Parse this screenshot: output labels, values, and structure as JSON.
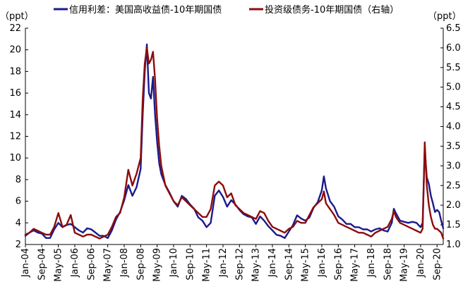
{
  "chart_data": {
    "type": "line",
    "legend": {
      "placement": "top",
      "entries": [
        "信用利差：美国高收益债-10年期国债",
        "投资级债务-10年期国债（右轴）"
      ]
    },
    "y_left": {
      "unit_label": "（ppt）",
      "ylim": [
        2,
        22
      ],
      "ticks": [
        "2",
        "4",
        "6",
        "8",
        "10",
        "12",
        "14",
        "16",
        "18",
        "20",
        "22"
      ]
    },
    "y_right": {
      "unit_label": "（ppt）",
      "ylim": [
        1.0,
        6.5
      ],
      "ticks": [
        "1.0",
        "1.5",
        "2.0",
        "2.5",
        "3.0",
        "3.5",
        "4.0",
        "4.5",
        "5.0",
        "5.5",
        "6.0",
        "6.5"
      ]
    },
    "x_tick_labels": [
      "Jan-04",
      "Sep-04",
      "May-05",
      "Jan-06",
      "Sep-06",
      "May-07",
      "Jan-08",
      "Sep-08",
      "May-09",
      "Jan-10",
      "Sep-10",
      "May-11",
      "Jan-12",
      "Sep-12",
      "May-13",
      "Jan-14",
      "Sep-14",
      "May-15",
      "Jan-16",
      "Sep-16",
      "May-17",
      "Jan-18",
      "Sep-18",
      "May-19",
      "Jan-20",
      "Sep-20"
    ],
    "x_range": [
      "2004-01",
      "2020-12"
    ],
    "grid": false,
    "series": [
      {
        "name": "信用利差：美国高收益债-10年期国债",
        "axis": "left",
        "color": "#1a1a8c",
        "points": [
          [
            "2004-01",
            2.8
          ],
          [
            "2004-03",
            3.1
          ],
          [
            "2004-05",
            3.3
          ],
          [
            "2004-07",
            3.1
          ],
          [
            "2004-09",
            3.0
          ],
          [
            "2004-11",
            2.6
          ],
          [
            "2005-01",
            2.6
          ],
          [
            "2005-03",
            3.4
          ],
          [
            "2005-05",
            4.0
          ],
          [
            "2005-07",
            3.6
          ],
          [
            "2005-09",
            3.8
          ],
          [
            "2005-11",
            3.9
          ],
          [
            "2006-01",
            3.6
          ],
          [
            "2006-03",
            3.3
          ],
          [
            "2006-05",
            3.1
          ],
          [
            "2006-07",
            3.5
          ],
          [
            "2006-09",
            3.4
          ],
          [
            "2006-11",
            3.1
          ],
          [
            "2007-01",
            2.8
          ],
          [
            "2007-03",
            2.8
          ],
          [
            "2007-05",
            2.6
          ],
          [
            "2007-07",
            3.3
          ],
          [
            "2007-09",
            4.3
          ],
          [
            "2007-11",
            5.0
          ],
          [
            "2008-01",
            6.1
          ],
          [
            "2008-03",
            7.5
          ],
          [
            "2008-05",
            6.5
          ],
          [
            "2008-07",
            7.3
          ],
          [
            "2008-09",
            9.0
          ],
          [
            "2008-10",
            14.0
          ],
          [
            "2008-11",
            18.0
          ],
          [
            "2008-12",
            20.5
          ],
          [
            "2009-01",
            16.0
          ],
          [
            "2009-02",
            15.5
          ],
          [
            "2009-03",
            17.5
          ],
          [
            "2009-04",
            14.0
          ],
          [
            "2009-05",
            11.5
          ],
          [
            "2009-06",
            9.5
          ],
          [
            "2009-07",
            8.5
          ],
          [
            "2009-09",
            7.5
          ],
          [
            "2009-11",
            6.8
          ],
          [
            "2010-01",
            6.0
          ],
          [
            "2010-03",
            5.5
          ],
          [
            "2010-05",
            6.5
          ],
          [
            "2010-07",
            6.2
          ],
          [
            "2010-09",
            5.7
          ],
          [
            "2010-11",
            5.3
          ],
          [
            "2011-01",
            4.5
          ],
          [
            "2011-03",
            4.2
          ],
          [
            "2011-05",
            3.6
          ],
          [
            "2011-07",
            4.0
          ],
          [
            "2011-09",
            6.5
          ],
          [
            "2011-11",
            7.0
          ],
          [
            "2012-01",
            6.4
          ],
          [
            "2012-03",
            5.5
          ],
          [
            "2012-05",
            6.1
          ],
          [
            "2012-07",
            5.7
          ],
          [
            "2012-09",
            5.2
          ],
          [
            "2012-11",
            4.8
          ],
          [
            "2013-01",
            4.6
          ],
          [
            "2013-03",
            4.5
          ],
          [
            "2013-05",
            3.9
          ],
          [
            "2013-07",
            4.6
          ],
          [
            "2013-09",
            4.2
          ],
          [
            "2013-11",
            3.7
          ],
          [
            "2014-01",
            3.3
          ],
          [
            "2014-03",
            2.9
          ],
          [
            "2014-05",
            2.8
          ],
          [
            "2014-07",
            2.6
          ],
          [
            "2014-09",
            3.2
          ],
          [
            "2014-11",
            3.8
          ],
          [
            "2015-01",
            4.7
          ],
          [
            "2015-03",
            4.4
          ],
          [
            "2015-05",
            4.2
          ],
          [
            "2015-07",
            4.5
          ],
          [
            "2015-09",
            5.4
          ],
          [
            "2015-11",
            5.9
          ],
          [
            "2016-01",
            7.0
          ],
          [
            "2016-02",
            8.3
          ],
          [
            "2016-03",
            7.2
          ],
          [
            "2016-05",
            6.0
          ],
          [
            "2016-07",
            5.5
          ],
          [
            "2016-09",
            4.6
          ],
          [
            "2016-11",
            4.3
          ],
          [
            "2017-01",
            3.9
          ],
          [
            "2017-03",
            3.9
          ],
          [
            "2017-05",
            3.6
          ],
          [
            "2017-07",
            3.6
          ],
          [
            "2017-09",
            3.4
          ],
          [
            "2017-11",
            3.4
          ],
          [
            "2018-01",
            3.2
          ],
          [
            "2018-03",
            3.4
          ],
          [
            "2018-05",
            3.5
          ],
          [
            "2018-07",
            3.3
          ],
          [
            "2018-09",
            3.2
          ],
          [
            "2018-11",
            4.0
          ],
          [
            "2018-12",
            5.3
          ],
          [
            "2019-01",
            4.9
          ],
          [
            "2019-03",
            4.2
          ],
          [
            "2019-05",
            4.1
          ],
          [
            "2019-07",
            4.0
          ],
          [
            "2019-09",
            4.1
          ],
          [
            "2019-11",
            4.0
          ],
          [
            "2020-01",
            3.6
          ],
          [
            "2020-02",
            4.0
          ],
          [
            "2020-03",
            10.8
          ],
          [
            "2020-04",
            8.2
          ],
          [
            "2020-05",
            7.6
          ],
          [
            "2020-06",
            6.5
          ],
          [
            "2020-07",
            5.8
          ],
          [
            "2020-08",
            5.0
          ],
          [
            "2020-09",
            5.2
          ],
          [
            "2020-10",
            5.0
          ],
          [
            "2020-11",
            4.2
          ],
          [
            "2020-12",
            3.5
          ]
        ]
      },
      {
        "name": "投资级债务-10年期国债（右轴）",
        "axis": "right",
        "color": "#8b0d0d",
        "points": [
          [
            "2004-01",
            1.25
          ],
          [
            "2004-03",
            1.3
          ],
          [
            "2004-05",
            1.4
          ],
          [
            "2004-07",
            1.35
          ],
          [
            "2004-09",
            1.3
          ],
          [
            "2004-11",
            1.25
          ],
          [
            "2005-01",
            1.25
          ],
          [
            "2005-03",
            1.45
          ],
          [
            "2005-05",
            1.8
          ],
          [
            "2005-07",
            1.45
          ],
          [
            "2005-09",
            1.5
          ],
          [
            "2005-11",
            1.75
          ],
          [
            "2006-01",
            1.3
          ],
          [
            "2006-03",
            1.25
          ],
          [
            "2006-05",
            1.2
          ],
          [
            "2006-07",
            1.25
          ],
          [
            "2006-09",
            1.25
          ],
          [
            "2006-11",
            1.2
          ],
          [
            "2007-01",
            1.15
          ],
          [
            "2007-03",
            1.2
          ],
          [
            "2007-05",
            1.25
          ],
          [
            "2007-07",
            1.45
          ],
          [
            "2007-09",
            1.7
          ],
          [
            "2007-11",
            1.8
          ],
          [
            "2008-01",
            2.2
          ],
          [
            "2008-03",
            2.9
          ],
          [
            "2008-05",
            2.5
          ],
          [
            "2008-07",
            2.8
          ],
          [
            "2008-09",
            3.2
          ],
          [
            "2008-10",
            4.7
          ],
          [
            "2008-11",
            5.6
          ],
          [
            "2008-12",
            6.0
          ],
          [
            "2009-01",
            5.6
          ],
          [
            "2009-02",
            5.7
          ],
          [
            "2009-03",
            5.9
          ],
          [
            "2009-04",
            5.2
          ],
          [
            "2009-05",
            4.2
          ],
          [
            "2009-06",
            3.5
          ],
          [
            "2009-07",
            3.0
          ],
          [
            "2009-09",
            2.5
          ],
          [
            "2009-11",
            2.3
          ],
          [
            "2010-01",
            2.1
          ],
          [
            "2010-03",
            2.0
          ],
          [
            "2010-05",
            2.2
          ],
          [
            "2010-07",
            2.1
          ],
          [
            "2010-09",
            2.0
          ],
          [
            "2010-11",
            1.9
          ],
          [
            "2011-01",
            1.8
          ],
          [
            "2011-03",
            1.7
          ],
          [
            "2011-05",
            1.7
          ],
          [
            "2011-07",
            1.9
          ],
          [
            "2011-09",
            2.5
          ],
          [
            "2011-11",
            2.6
          ],
          [
            "2012-01",
            2.5
          ],
          [
            "2012-03",
            2.2
          ],
          [
            "2012-05",
            2.3
          ],
          [
            "2012-07",
            2.0
          ],
          [
            "2012-09",
            1.9
          ],
          [
            "2012-11",
            1.8
          ],
          [
            "2013-01",
            1.75
          ],
          [
            "2013-03",
            1.7
          ],
          [
            "2013-05",
            1.65
          ],
          [
            "2013-07",
            1.85
          ],
          [
            "2013-09",
            1.8
          ],
          [
            "2013-11",
            1.6
          ],
          [
            "2014-01",
            1.45
          ],
          [
            "2014-03",
            1.4
          ],
          [
            "2014-05",
            1.35
          ],
          [
            "2014-07",
            1.3
          ],
          [
            "2014-09",
            1.4
          ],
          [
            "2014-11",
            1.45
          ],
          [
            "2015-01",
            1.6
          ],
          [
            "2015-03",
            1.55
          ],
          [
            "2015-05",
            1.55
          ],
          [
            "2015-07",
            1.75
          ],
          [
            "2015-09",
            1.95
          ],
          [
            "2015-11",
            2.05
          ],
          [
            "2016-01",
            2.15
          ],
          [
            "2016-02",
            2.35
          ],
          [
            "2016-03",
            2.05
          ],
          [
            "2016-05",
            1.9
          ],
          [
            "2016-07",
            1.75
          ],
          [
            "2016-09",
            1.55
          ],
          [
            "2016-11",
            1.5
          ],
          [
            "2017-01",
            1.45
          ],
          [
            "2017-03",
            1.4
          ],
          [
            "2017-05",
            1.35
          ],
          [
            "2017-07",
            1.3
          ],
          [
            "2017-09",
            1.3
          ],
          [
            "2017-11",
            1.25
          ],
          [
            "2018-01",
            1.2
          ],
          [
            "2018-03",
            1.3
          ],
          [
            "2018-05",
            1.35
          ],
          [
            "2018-07",
            1.4
          ],
          [
            "2018-09",
            1.45
          ],
          [
            "2018-11",
            1.65
          ],
          [
            "2018-12",
            1.85
          ],
          [
            "2019-01",
            1.7
          ],
          [
            "2019-03",
            1.55
          ],
          [
            "2019-05",
            1.5
          ],
          [
            "2019-07",
            1.45
          ],
          [
            "2019-09",
            1.4
          ],
          [
            "2019-11",
            1.35
          ],
          [
            "2020-01",
            1.3
          ],
          [
            "2020-02",
            1.4
          ],
          [
            "2020-03",
            3.6
          ],
          [
            "2020-04",
            2.5
          ],
          [
            "2020-05",
            2.0
          ],
          [
            "2020-06",
            1.7
          ],
          [
            "2020-07",
            1.5
          ],
          [
            "2020-08",
            1.4
          ],
          [
            "2020-09",
            1.4
          ],
          [
            "2020-10",
            1.35
          ],
          [
            "2020-11",
            1.3
          ],
          [
            "2020-12",
            1.15
          ]
        ]
      }
    ]
  }
}
